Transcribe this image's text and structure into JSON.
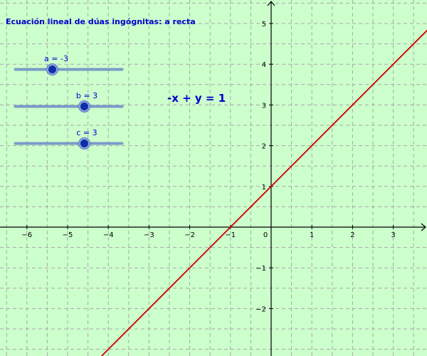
{
  "app": {
    "title": "Ecuación lineal de dúas ingógnitas: a recta"
  },
  "equation": {
    "text": "-x + y = 1"
  },
  "sliders": [
    {
      "name": "a",
      "label": "a = -3",
      "value": -3,
      "min": -5,
      "max": 5
    },
    {
      "name": "b",
      "label": "b = 3",
      "value": 3,
      "min": -5,
      "max": 5
    },
    {
      "name": "c",
      "label": "c = 3",
      "value": 3,
      "min": -5,
      "max": 5
    }
  ],
  "graph": {
    "x_tick_labels": [
      "−6",
      "−5",
      "−4",
      "−3",
      "−2",
      "−1",
      "0",
      "1",
      "2",
      "3"
    ],
    "y_tick_labels": [
      "5",
      "4",
      "3",
      "2",
      "1",
      "−1",
      "−2"
    ],
    "x_range": [
      -6.6,
      3.9
    ],
    "y_range": [
      -3.1,
      5.6
    ],
    "grid": true,
    "line": {
      "slope": 1,
      "intercept": 1,
      "color": "#cc0000"
    }
  },
  "colors": {
    "background": "#ccffcc",
    "text": "#0000cc",
    "grid": "#a8a8a8",
    "axis": "#000000"
  }
}
